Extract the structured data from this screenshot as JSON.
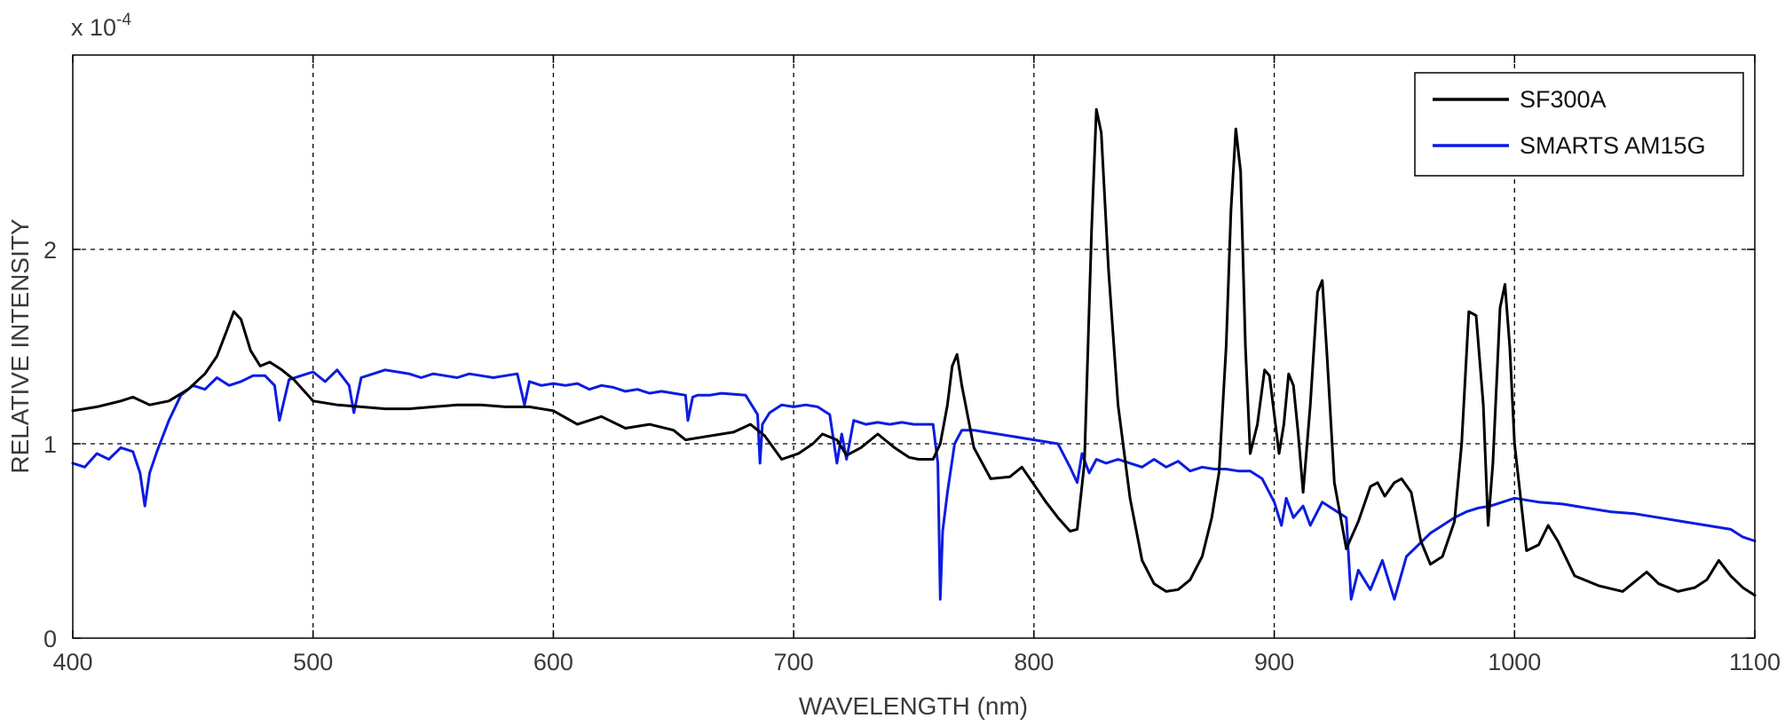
{
  "chart_data": {
    "type": "line",
    "title": "",
    "xlabel": "WAVELENGTH (nm)",
    "ylabel": "RELATIVE INTENSITY",
    "y_multiplier_label": "x 10",
    "y_multiplier_exponent": "-4",
    "xlim": [
      400,
      1100
    ],
    "ylim": [
      0,
      3
    ],
    "x_ticks": [
      400,
      500,
      600,
      700,
      800,
      900,
      1000,
      1100
    ],
    "x_tick_labels": [
      "400",
      "500",
      "600",
      "700",
      "800",
      "900",
      "1000",
      "1100"
    ],
    "y_ticks": [
      0,
      1,
      2
    ],
    "y_tick_labels": [
      "0",
      "1",
      "2"
    ],
    "grid": true,
    "legend_position": "top-right",
    "series": [
      {
        "name": "SF300A",
        "color": "#000000",
        "x": [
          400,
          410,
          420,
          425,
          432,
          440,
          448,
          455,
          460,
          464,
          467,
          470,
          474,
          478,
          482,
          487,
          492,
          500,
          510,
          520,
          530,
          540,
          550,
          560,
          570,
          580,
          590,
          600,
          610,
          620,
          630,
          640,
          650,
          655,
          665,
          675,
          682,
          688,
          695,
          702,
          708,
          712,
          718,
          722,
          728,
          735,
          742,
          748,
          752,
          758,
          761,
          764,
          766,
          768,
          770,
          775,
          782,
          790,
          795,
          800,
          805,
          810,
          815,
          818,
          821,
          824,
          826,
          828,
          831,
          835,
          840,
          845,
          850,
          855,
          860,
          865,
          870,
          874,
          877,
          880,
          882,
          884,
          886,
          888,
          890,
          893,
          896,
          898,
          900,
          902,
          904,
          906,
          908,
          910,
          912,
          915,
          918,
          920,
          922,
          925,
          930,
          935,
          940,
          943,
          946,
          950,
          953,
          957,
          961,
          965,
          970,
          975,
          978,
          981,
          984,
          987,
          989,
          991,
          994,
          996,
          998,
          1000,
          1005,
          1010,
          1014,
          1018,
          1025,
          1035,
          1045,
          1055,
          1060,
          1068,
          1075,
          1080,
          1085,
          1090,
          1095,
          1100
        ],
        "y": [
          1.17,
          1.19,
          1.22,
          1.24,
          1.2,
          1.22,
          1.28,
          1.36,
          1.45,
          1.58,
          1.68,
          1.64,
          1.48,
          1.4,
          1.42,
          1.38,
          1.33,
          1.22,
          1.2,
          1.19,
          1.18,
          1.18,
          1.19,
          1.2,
          1.2,
          1.19,
          1.19,
          1.17,
          1.1,
          1.14,
          1.08,
          1.1,
          1.07,
          1.02,
          1.04,
          1.06,
          1.1,
          1.04,
          0.92,
          0.95,
          1.0,
          1.05,
          1.02,
          0.94,
          0.98,
          1.05,
          0.98,
          0.93,
          0.92,
          0.92,
          1.0,
          1.2,
          1.4,
          1.46,
          1.3,
          0.98,
          0.82,
          0.83,
          0.88,
          0.79,
          0.7,
          0.62,
          0.55,
          0.56,
          0.9,
          2.1,
          2.72,
          2.6,
          1.9,
          1.2,
          0.72,
          0.4,
          0.28,
          0.24,
          0.25,
          0.3,
          0.42,
          0.62,
          0.85,
          1.5,
          2.2,
          2.62,
          2.4,
          1.5,
          0.95,
          1.1,
          1.38,
          1.35,
          1.15,
          0.95,
          1.1,
          1.36,
          1.3,
          1.05,
          0.75,
          1.2,
          1.78,
          1.84,
          1.45,
          0.8,
          0.46,
          0.6,
          0.78,
          0.8,
          0.73,
          0.8,
          0.82,
          0.75,
          0.5,
          0.38,
          0.42,
          0.6,
          1.0,
          1.68,
          1.66,
          1.2,
          0.58,
          0.9,
          1.7,
          1.82,
          1.5,
          1.0,
          0.45,
          0.48,
          0.58,
          0.5,
          0.32,
          0.27,
          0.24,
          0.34,
          0.28,
          0.24,
          0.26,
          0.3,
          0.4,
          0.32,
          0.26,
          0.22
        ]
      },
      {
        "name": "SMARTS AM15G",
        "color": "#0b1ce0",
        "x": [
          400,
          405,
          410,
          415,
          420,
          425,
          428,
          430,
          432,
          435,
          440,
          445,
          450,
          455,
          460,
          465,
          470,
          475,
          480,
          484,
          486,
          490,
          495,
          500,
          505,
          510,
          515,
          517,
          520,
          525,
          530,
          535,
          540,
          545,
          550,
          555,
          560,
          565,
          570,
          575,
          580,
          585,
          588,
          590,
          595,
          600,
          605,
          610,
          615,
          620,
          625,
          630,
          635,
          640,
          645,
          650,
          655,
          656,
          658,
          660,
          665,
          670,
          680,
          685,
          686,
          687,
          690,
          695,
          700,
          705,
          710,
          715,
          718,
          720,
          722,
          725,
          730,
          735,
          740,
          745,
          750,
          755,
          758,
          760,
          761,
          762,
          764,
          767,
          770,
          775,
          780,
          790,
          800,
          810,
          815,
          818,
          820,
          823,
          826,
          830,
          835,
          840,
          845,
          850,
          855,
          860,
          865,
          870,
          875,
          880,
          885,
          890,
          895,
          900,
          903,
          905,
          908,
          912,
          915,
          920,
          925,
          930,
          932,
          935,
          940,
          945,
          950,
          955,
          960,
          965,
          970,
          975,
          980,
          985,
          990,
          995,
          1000,
          1010,
          1020,
          1030,
          1040,
          1050,
          1060,
          1070,
          1080,
          1090,
          1095,
          1100
        ],
        "y": [
          0.9,
          0.88,
          0.95,
          0.92,
          0.98,
          0.96,
          0.85,
          0.68,
          0.85,
          0.96,
          1.12,
          1.25,
          1.3,
          1.28,
          1.34,
          1.3,
          1.32,
          1.35,
          1.35,
          1.3,
          1.12,
          1.33,
          1.35,
          1.37,
          1.32,
          1.38,
          1.3,
          1.16,
          1.34,
          1.36,
          1.38,
          1.37,
          1.36,
          1.34,
          1.36,
          1.35,
          1.34,
          1.36,
          1.35,
          1.34,
          1.35,
          1.36,
          1.2,
          1.32,
          1.3,
          1.31,
          1.3,
          1.31,
          1.28,
          1.3,
          1.29,
          1.27,
          1.28,
          1.26,
          1.27,
          1.26,
          1.25,
          1.12,
          1.24,
          1.25,
          1.25,
          1.26,
          1.25,
          1.15,
          0.9,
          1.1,
          1.16,
          1.2,
          1.19,
          1.2,
          1.19,
          1.15,
          0.9,
          1.05,
          0.92,
          1.12,
          1.1,
          1.11,
          1.1,
          1.11,
          1.1,
          1.1,
          1.1,
          0.9,
          0.2,
          0.55,
          0.75,
          1.0,
          1.07,
          1.07,
          1.06,
          1.04,
          1.02,
          1.0,
          0.88,
          0.8,
          0.95,
          0.85,
          0.92,
          0.9,
          0.92,
          0.9,
          0.88,
          0.92,
          0.88,
          0.91,
          0.86,
          0.88,
          0.87,
          0.87,
          0.86,
          0.86,
          0.82,
          0.7,
          0.58,
          0.72,
          0.62,
          0.68,
          0.58,
          0.7,
          0.66,
          0.62,
          0.2,
          0.35,
          0.25,
          0.4,
          0.2,
          0.42,
          0.48,
          0.54,
          0.58,
          0.62,
          0.65,
          0.67,
          0.68,
          0.7,
          0.72,
          0.7,
          0.69,
          0.67,
          0.65,
          0.64,
          0.62,
          0.6,
          0.58,
          0.56,
          0.52,
          0.5
        ]
      }
    ]
  }
}
